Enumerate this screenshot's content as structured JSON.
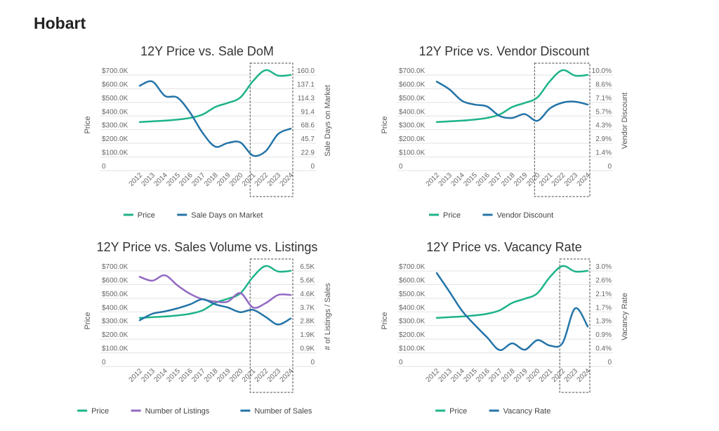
{
  "page": {
    "title": "Hobart"
  },
  "colors": {
    "price": "#1db38a",
    "blue": "#2474a8",
    "purple": "#9269c2",
    "grid": "#e3e3e3",
    "axis_text": "#666666"
  },
  "chart_data": [
    {
      "type": "line",
      "title": "12Y Price vs. Sale DoM",
      "categories": [
        "2012",
        "2013",
        "2014",
        "2015",
        "2016",
        "2017",
        "2018",
        "2019",
        "2020",
        "2021",
        "2022",
        "2023",
        "2024"
      ],
      "ylabel": "Price",
      "y2label": "Sale Days on Market",
      "ylim": [
        0,
        700000
      ],
      "y2lim": [
        0,
        160
      ],
      "yticks": [
        "0",
        "$100.0K",
        "$200.0K",
        "$300.0K",
        "$400.0K",
        "$500.0K",
        "$600.0K",
        "$700.0K"
      ],
      "y2ticks": [
        "0",
        "22.9",
        "45.7",
        "68.6",
        "91.4",
        "114.3",
        "137.1",
        "160.0"
      ],
      "highlight_from": "2021",
      "series": [
        {
          "name": "Price",
          "axis": "left",
          "color": "#1db38a",
          "values": [
            320000,
            325000,
            330000,
            338000,
            350000,
            375000,
            430000,
            460000,
            500000,
            620000,
            700000,
            660000,
            665000
          ]
        },
        {
          "name": "Sale Days on Market",
          "axis": "right",
          "color": "#2474a8",
          "values": [
            134,
            141,
            117,
            114,
            89,
            55,
            32,
            38,
            39,
            17,
            24,
            53,
            62
          ]
        }
      ]
    },
    {
      "type": "line",
      "title": "12Y Price vs. Vendor Discount",
      "categories": [
        "2012",
        "2013",
        "2014",
        "2015",
        "2016",
        "2017",
        "2018",
        "2019",
        "2020",
        "2021",
        "2022",
        "2023",
        "2024"
      ],
      "ylabel": "Price",
      "y2label": "Vendor Discount",
      "ylim": [
        0,
        700000
      ],
      "y2lim": [
        0,
        10
      ],
      "yticks": [
        "0",
        "$100.0K",
        "$200.0K",
        "$300.0K",
        "$400.0K",
        "$500.0K",
        "$600.0K",
        "$700.0K"
      ],
      "y2ticks": [
        "0",
        "1.4%",
        "2.9%",
        "4.3%",
        "5.7%",
        "7.1%",
        "8.6%",
        "10.0%"
      ],
      "highlight_from": "2020",
      "series": [
        {
          "name": "Price",
          "axis": "left",
          "color": "#1db38a",
          "values": [
            320000,
            325000,
            330000,
            338000,
            350000,
            375000,
            430000,
            460000,
            500000,
            620000,
            700000,
            660000,
            665000
          ]
        },
        {
          "name": "Vendor Discount",
          "axis": "right",
          "color": "#2474a8",
          "values": [
            8.8,
            8.0,
            6.8,
            6.4,
            6.2,
            5.2,
            5.0,
            5.4,
            4.7,
            6.0,
            6.6,
            6.7,
            6.4
          ]
        }
      ]
    },
    {
      "type": "line",
      "title": "12Y Price vs. Sales Volume vs. Listings",
      "categories": [
        "2012",
        "2013",
        "2014",
        "2015",
        "2016",
        "2017",
        "2018",
        "2019",
        "2020",
        "2021",
        "2022",
        "2023",
        "2024"
      ],
      "ylabel": "Price",
      "y2label": "# of Listings / Sales",
      "ylim": [
        0,
        700000
      ],
      "y2lim": [
        0,
        6500
      ],
      "yticks": [
        "0",
        "$100.0K",
        "$200.0K",
        "$300.0K",
        "$400.0K",
        "$500.0K",
        "$600.0K",
        "$700.0K"
      ],
      "y2ticks": [
        "0",
        "0.9K",
        "1.9K",
        "2.8K",
        "3.7K",
        "4.6K",
        "5.6K",
        "6.5K"
      ],
      "highlight_from": "2021",
      "series": [
        {
          "name": "Price",
          "axis": "left",
          "color": "#1db38a",
          "values": [
            320000,
            325000,
            330000,
            338000,
            350000,
            375000,
            430000,
            460000,
            500000,
            620000,
            700000,
            660000,
            665000
          ]
        },
        {
          "name": "Number of Listings",
          "axis": "right",
          "color": "#9269c2",
          "values": [
            5770,
            5500,
            5870,
            5180,
            4610,
            4240,
            4080,
            4080,
            4660,
            3680,
            3970,
            4530,
            4530
          ]
        },
        {
          "name": "Number of Sales",
          "axis": "right",
          "color": "#2474a8",
          "values": [
            2810,
            3250,
            3410,
            3620,
            3890,
            4240,
            3890,
            3680,
            3360,
            3520,
            3040,
            2520,
            2930
          ]
        }
      ]
    },
    {
      "type": "line",
      "title": "12Y Price vs. Vacancy Rate",
      "categories": [
        "2012",
        "2013",
        "2014",
        "2015",
        "2016",
        "2017",
        "2018",
        "2019",
        "2020",
        "2021",
        "2022",
        "2023",
        "2024"
      ],
      "ylabel": "Price",
      "y2label": "Vacancy Rate",
      "ylim": [
        0,
        700000
      ],
      "y2lim": [
        0,
        3
      ],
      "yticks": [
        "0",
        "$100.0K",
        "$200.0K",
        "$300.0K",
        "$400.0K",
        "$500.0K",
        "$600.0K",
        "$700.0K"
      ],
      "y2ticks": [
        "0",
        "0.4%",
        "0.9%",
        "1.3%",
        "1.7%",
        "2.1%",
        "2.6%",
        "3.0%"
      ],
      "highlight_from": "2022",
      "series": [
        {
          "name": "Price",
          "axis": "left",
          "color": "#1db38a",
          "values": [
            320000,
            325000,
            330000,
            338000,
            350000,
            375000,
            430000,
            460000,
            500000,
            620000,
            700000,
            660000,
            665000
          ]
        },
        {
          "name": "Vacancy Rate",
          "axis": "right",
          "color": "#2474a8",
          "values": [
            2.78,
            2.2,
            1.6,
            1.16,
            0.76,
            0.36,
            0.57,
            0.37,
            0.67,
            0.5,
            0.58,
            1.67,
            1.1
          ]
        }
      ]
    }
  ]
}
